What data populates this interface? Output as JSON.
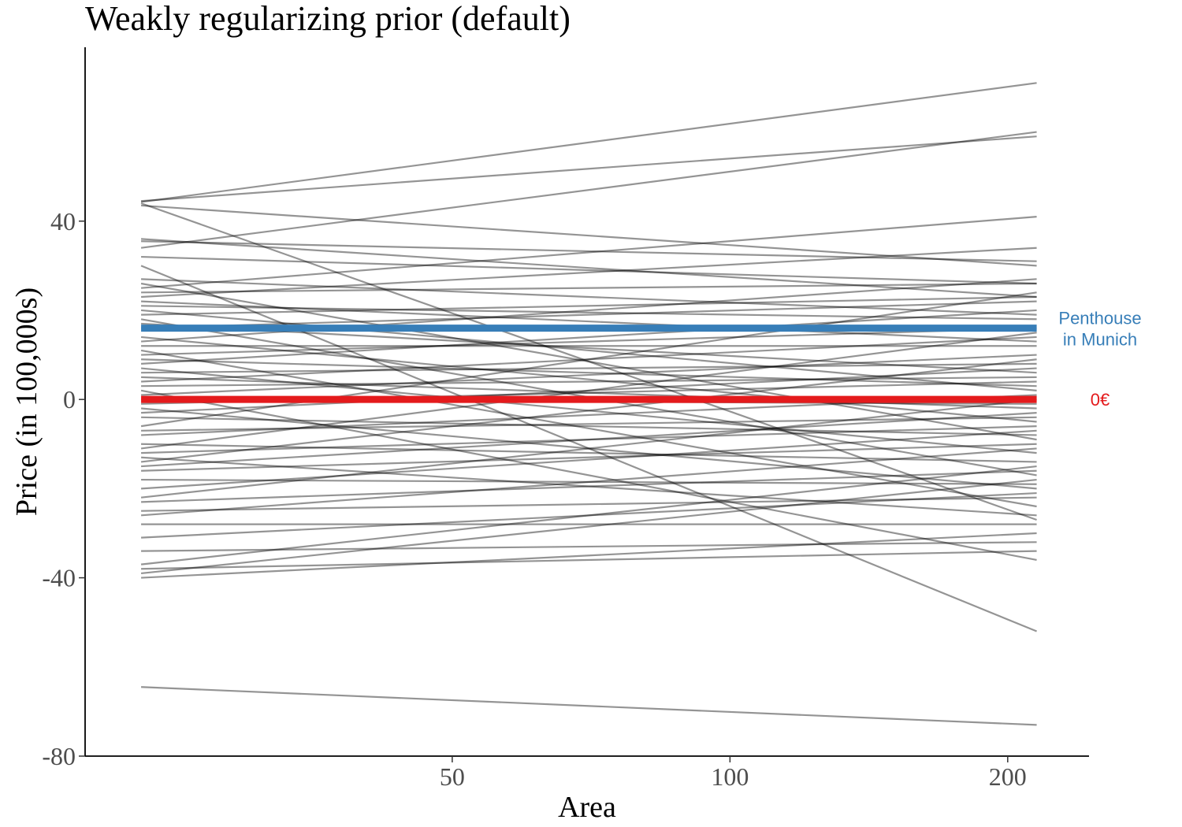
{
  "chart_data": {
    "type": "line",
    "title": "Weakly regularizing prior (default)",
    "xlabel": "Area",
    "ylabel": "Price (in 100,000s)",
    "x_scale": "log",
    "xlim": [
      20,
      245
    ],
    "ylim": [
      -80,
      79
    ],
    "x_range": [
      23,
      215
    ],
    "x_ticks": [
      50,
      100,
      200
    ],
    "y_ticks": [
      -80,
      -40,
      0,
      40
    ],
    "grid": false,
    "legend": "none",
    "colors": {
      "draws": "#000000",
      "penthouse": "#377EB8",
      "zero": "#E41A1C"
    },
    "reference_lines": [
      {
        "label": "Penthouse\nin Munich",
        "y": 16,
        "color": "#377EB8"
      },
      {
        "label": "0€",
        "y": 0,
        "color": "#E41A1C"
      }
    ],
    "prior_draws": [
      {
        "y_start": 44.3,
        "y_end": 71
      },
      {
        "y_start": 44.5,
        "y_end": 59
      },
      {
        "y_start": 43.5,
        "y_end": 30
      },
      {
        "y_start": 44,
        "y_end": -27
      },
      {
        "y_start": 36,
        "y_end": 23
      },
      {
        "y_start": 35.5,
        "y_end": 31
      },
      {
        "y_start": 34,
        "y_end": 60
      },
      {
        "y_start": 32,
        "y_end": 26
      },
      {
        "y_start": 27,
        "y_end": 19
      },
      {
        "y_start": 26,
        "y_end": -9
      },
      {
        "y_start": 25,
        "y_end": 41
      },
      {
        "y_start": 24,
        "y_end": 26
      },
      {
        "y_start": 23,
        "y_end": 34
      },
      {
        "y_start": 22,
        "y_end": 13
      },
      {
        "y_start": 21,
        "y_end": 18
      },
      {
        "y_start": 20,
        "y_end": 2
      },
      {
        "y_start": 19,
        "y_end": 23
      },
      {
        "y_start": 18,
        "y_end": -17
      },
      {
        "y_start": 17,
        "y_end": 6
      },
      {
        "y_start": 16,
        "y_end": 22
      },
      {
        "y_start": 14,
        "y_end": -5
      },
      {
        "y_start": 13,
        "y_end": 27
      },
      {
        "y_start": 12,
        "y_end": 12
      },
      {
        "y_start": 11,
        "y_end": -24
      },
      {
        "y_start": 10,
        "y_end": 16
      },
      {
        "y_start": 9,
        "y_end": 3
      },
      {
        "y_start": 8,
        "y_end": 20
      },
      {
        "y_start": 7,
        "y_end": -12
      },
      {
        "y_start": 6,
        "y_end": 8
      },
      {
        "y_start": 5,
        "y_end": -2
      },
      {
        "y_start": 4,
        "y_end": 14
      },
      {
        "y_start": 3,
        "y_end": 5
      },
      {
        "y_start": 2,
        "y_end": -36
      },
      {
        "y_start": 1,
        "y_end": 10
      },
      {
        "y_start": 0,
        "y_end": -1
      },
      {
        "y_start": -1,
        "y_end": 4
      },
      {
        "y_start": -2,
        "y_end": -20
      },
      {
        "y_start": -3,
        "y_end": 7
      },
      {
        "y_start": -4,
        "y_end": -8
      },
      {
        "y_start": -6,
        "y_end": 24
      },
      {
        "y_start": -7,
        "y_end": -4
      },
      {
        "y_start": -8,
        "y_end": 1
      },
      {
        "y_start": -10,
        "y_end": -14
      },
      {
        "y_start": -11,
        "y_end": 15
      },
      {
        "y_start": -12,
        "y_end": -6
      },
      {
        "y_start": -13,
        "y_end": -26
      },
      {
        "y_start": -14,
        "y_end": 9
      },
      {
        "y_start": -15,
        "y_end": -3
      },
      {
        "y_start": -16,
        "y_end": -10
      },
      {
        "y_start": -18,
        "y_end": -19
      },
      {
        "y_start": -20,
        "y_end": -7
      },
      {
        "y_start": -22,
        "y_end": 0
      },
      {
        "y_start": -23,
        "y_end": -16
      },
      {
        "y_start": -25,
        "y_end": -22
      },
      {
        "y_start": -26,
        "y_end": -11
      },
      {
        "y_start": -28,
        "y_end": -28
      },
      {
        "y_start": -31,
        "y_end": -21
      },
      {
        "y_start": -34,
        "y_end": -32
      },
      {
        "y_start": -37,
        "y_end": -15
      },
      {
        "y_start": -38,
        "y_end": -34
      },
      {
        "y_start": -39,
        "y_end": -18
      },
      {
        "y_start": -40,
        "y_end": -30
      },
      {
        "y_start": 30,
        "y_end": -52
      },
      {
        "y_start": -64.5,
        "y_end": -73
      }
    ]
  }
}
